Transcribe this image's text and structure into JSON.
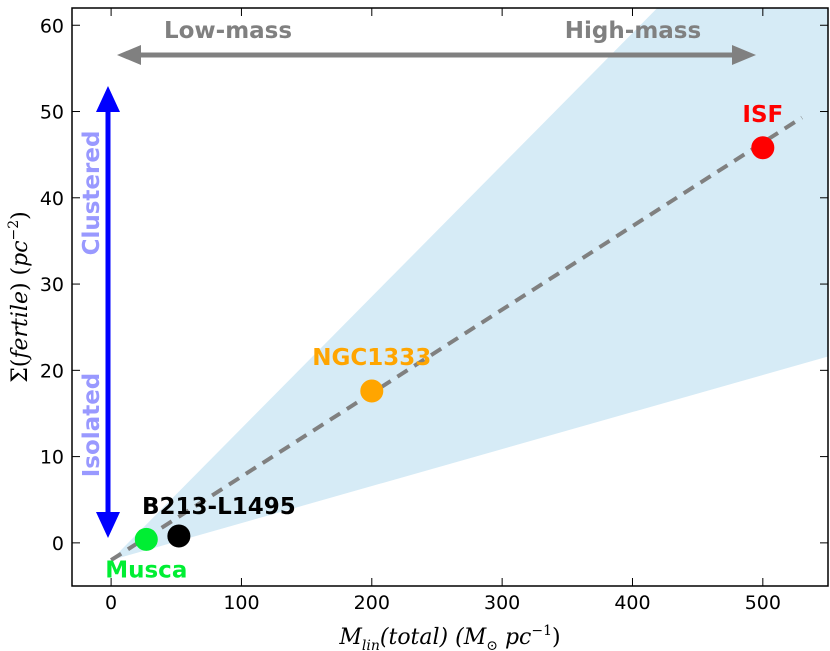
{
  "chart_data": {
    "type": "scatter",
    "xlabel": "M_lin(total) (M_⊙ pc^-1)",
    "ylabel": "Σ(fertile) (pc^-2)",
    "xlim": [
      -30,
      550
    ],
    "ylim": [
      -5,
      62
    ],
    "xticks": [
      "0",
      "100",
      "200",
      "300",
      "400",
      "500"
    ],
    "yticks": [
      "0",
      "10",
      "20",
      "30",
      "40",
      "50",
      "60"
    ],
    "points": [
      {
        "name": "Musca",
        "x": 27,
        "y": 0.4,
        "color": "#00ee33"
      },
      {
        "name": "B213-L1495",
        "x": 52,
        "y": 0.8,
        "color": "#000000"
      },
      {
        "name": "NGC1333",
        "x": 200,
        "y": 17.6,
        "color": "#ffa500"
      },
      {
        "name": "ISF",
        "x": 500,
        "y": 45.8,
        "color": "#ff0000"
      }
    ],
    "fit_line": {
      "style": "dashed",
      "color": "#808080",
      "x": [
        0,
        530
      ],
      "y": [
        -2.0,
        49.3
      ]
    },
    "wedge": {
      "color": "#d6ebf6",
      "apex": [
        0,
        -2
      ],
      "upper_at_x_550": 82,
      "lower_at_x_550": 21.6
    },
    "annotations": {
      "low_mass": "Low-mass",
      "high_mass": "High-mass",
      "clustered": "Clustered",
      "isolated": "Isolated"
    },
    "colors": {
      "horizontal_arrow": "#808080",
      "vertical_arrow": "#0000ff",
      "vertical_text": "#9999ff"
    }
  }
}
